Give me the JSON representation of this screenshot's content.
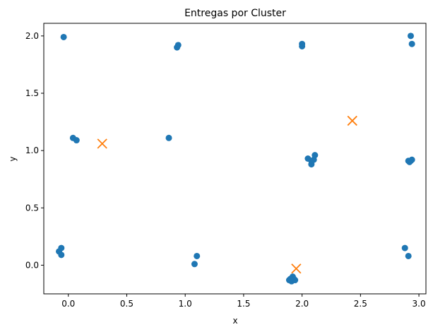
{
  "chart_data": {
    "type": "scatter",
    "title": "Entregas por Cluster",
    "xlabel": "x",
    "ylabel": "y",
    "xlim": [
      -0.21,
      3.06
    ],
    "ylim": [
      -0.25,
      2.11
    ],
    "xticks": [
      0.0,
      0.5,
      1.0,
      1.5,
      2.0,
      2.5,
      3.0
    ],
    "yticks": [
      0.0,
      0.5,
      1.0,
      1.5,
      2.0
    ],
    "xtick_labels": [
      "0.0",
      "0.5",
      "1.0",
      "1.5",
      "2.0",
      "2.5",
      "3.0"
    ],
    "ytick_labels": [
      "0.0",
      "0.5",
      "1.0",
      "1.5",
      "2.0"
    ],
    "grid": false,
    "legend": "none",
    "series": [
      {
        "marker": "circle",
        "color": "#1f77b4",
        "points": [
          {
            "x": -0.04,
            "y": 1.99
          },
          {
            "x": 0.04,
            "y": 1.11
          },
          {
            "x": 0.07,
            "y": 1.09
          },
          {
            "x": -0.08,
            "y": 0.12
          },
          {
            "x": -0.06,
            "y": 0.15
          },
          {
            "x": -0.06,
            "y": 0.09
          },
          {
            "x": 0.93,
            "y": 1.9
          },
          {
            "x": 0.94,
            "y": 1.92
          },
          {
            "x": 0.86,
            "y": 1.11
          },
          {
            "x": 1.1,
            "y": 0.08
          },
          {
            "x": 1.08,
            "y": 0.01
          },
          {
            "x": 2.0,
            "y": 1.93
          },
          {
            "x": 2.0,
            "y": 1.91
          },
          {
            "x": 2.05,
            "y": 0.93
          },
          {
            "x": 2.08,
            "y": 0.91
          },
          {
            "x": 2.08,
            "y": 0.88
          },
          {
            "x": 2.1,
            "y": 0.92
          },
          {
            "x": 2.11,
            "y": 0.96
          },
          {
            "x": 1.89,
            "y": -0.13
          },
          {
            "x": 1.91,
            "y": -0.14
          },
          {
            "x": 1.92,
            "y": -0.13
          },
          {
            "x": 1.93,
            "y": -0.12
          },
          {
            "x": 1.94,
            "y": -0.13
          },
          {
            "x": 1.92,
            "y": -0.1
          },
          {
            "x": 1.9,
            "y": -0.12
          },
          {
            "x": 2.93,
            "y": 2.0
          },
          {
            "x": 2.94,
            "y": 1.93
          },
          {
            "x": 2.91,
            "y": 0.91
          },
          {
            "x": 2.92,
            "y": 0.9
          },
          {
            "x": 2.94,
            "y": 0.92
          },
          {
            "x": 2.93,
            "y": 0.91
          },
          {
            "x": 2.88,
            "y": 0.15
          },
          {
            "x": 2.91,
            "y": 0.08
          }
        ]
      },
      {
        "marker": "x",
        "color": "#ff7f0e",
        "points": [
          {
            "x": 0.29,
            "y": 1.06
          },
          {
            "x": 2.43,
            "y": 1.26
          },
          {
            "x": 1.95,
            "y": -0.03
          }
        ]
      }
    ]
  }
}
